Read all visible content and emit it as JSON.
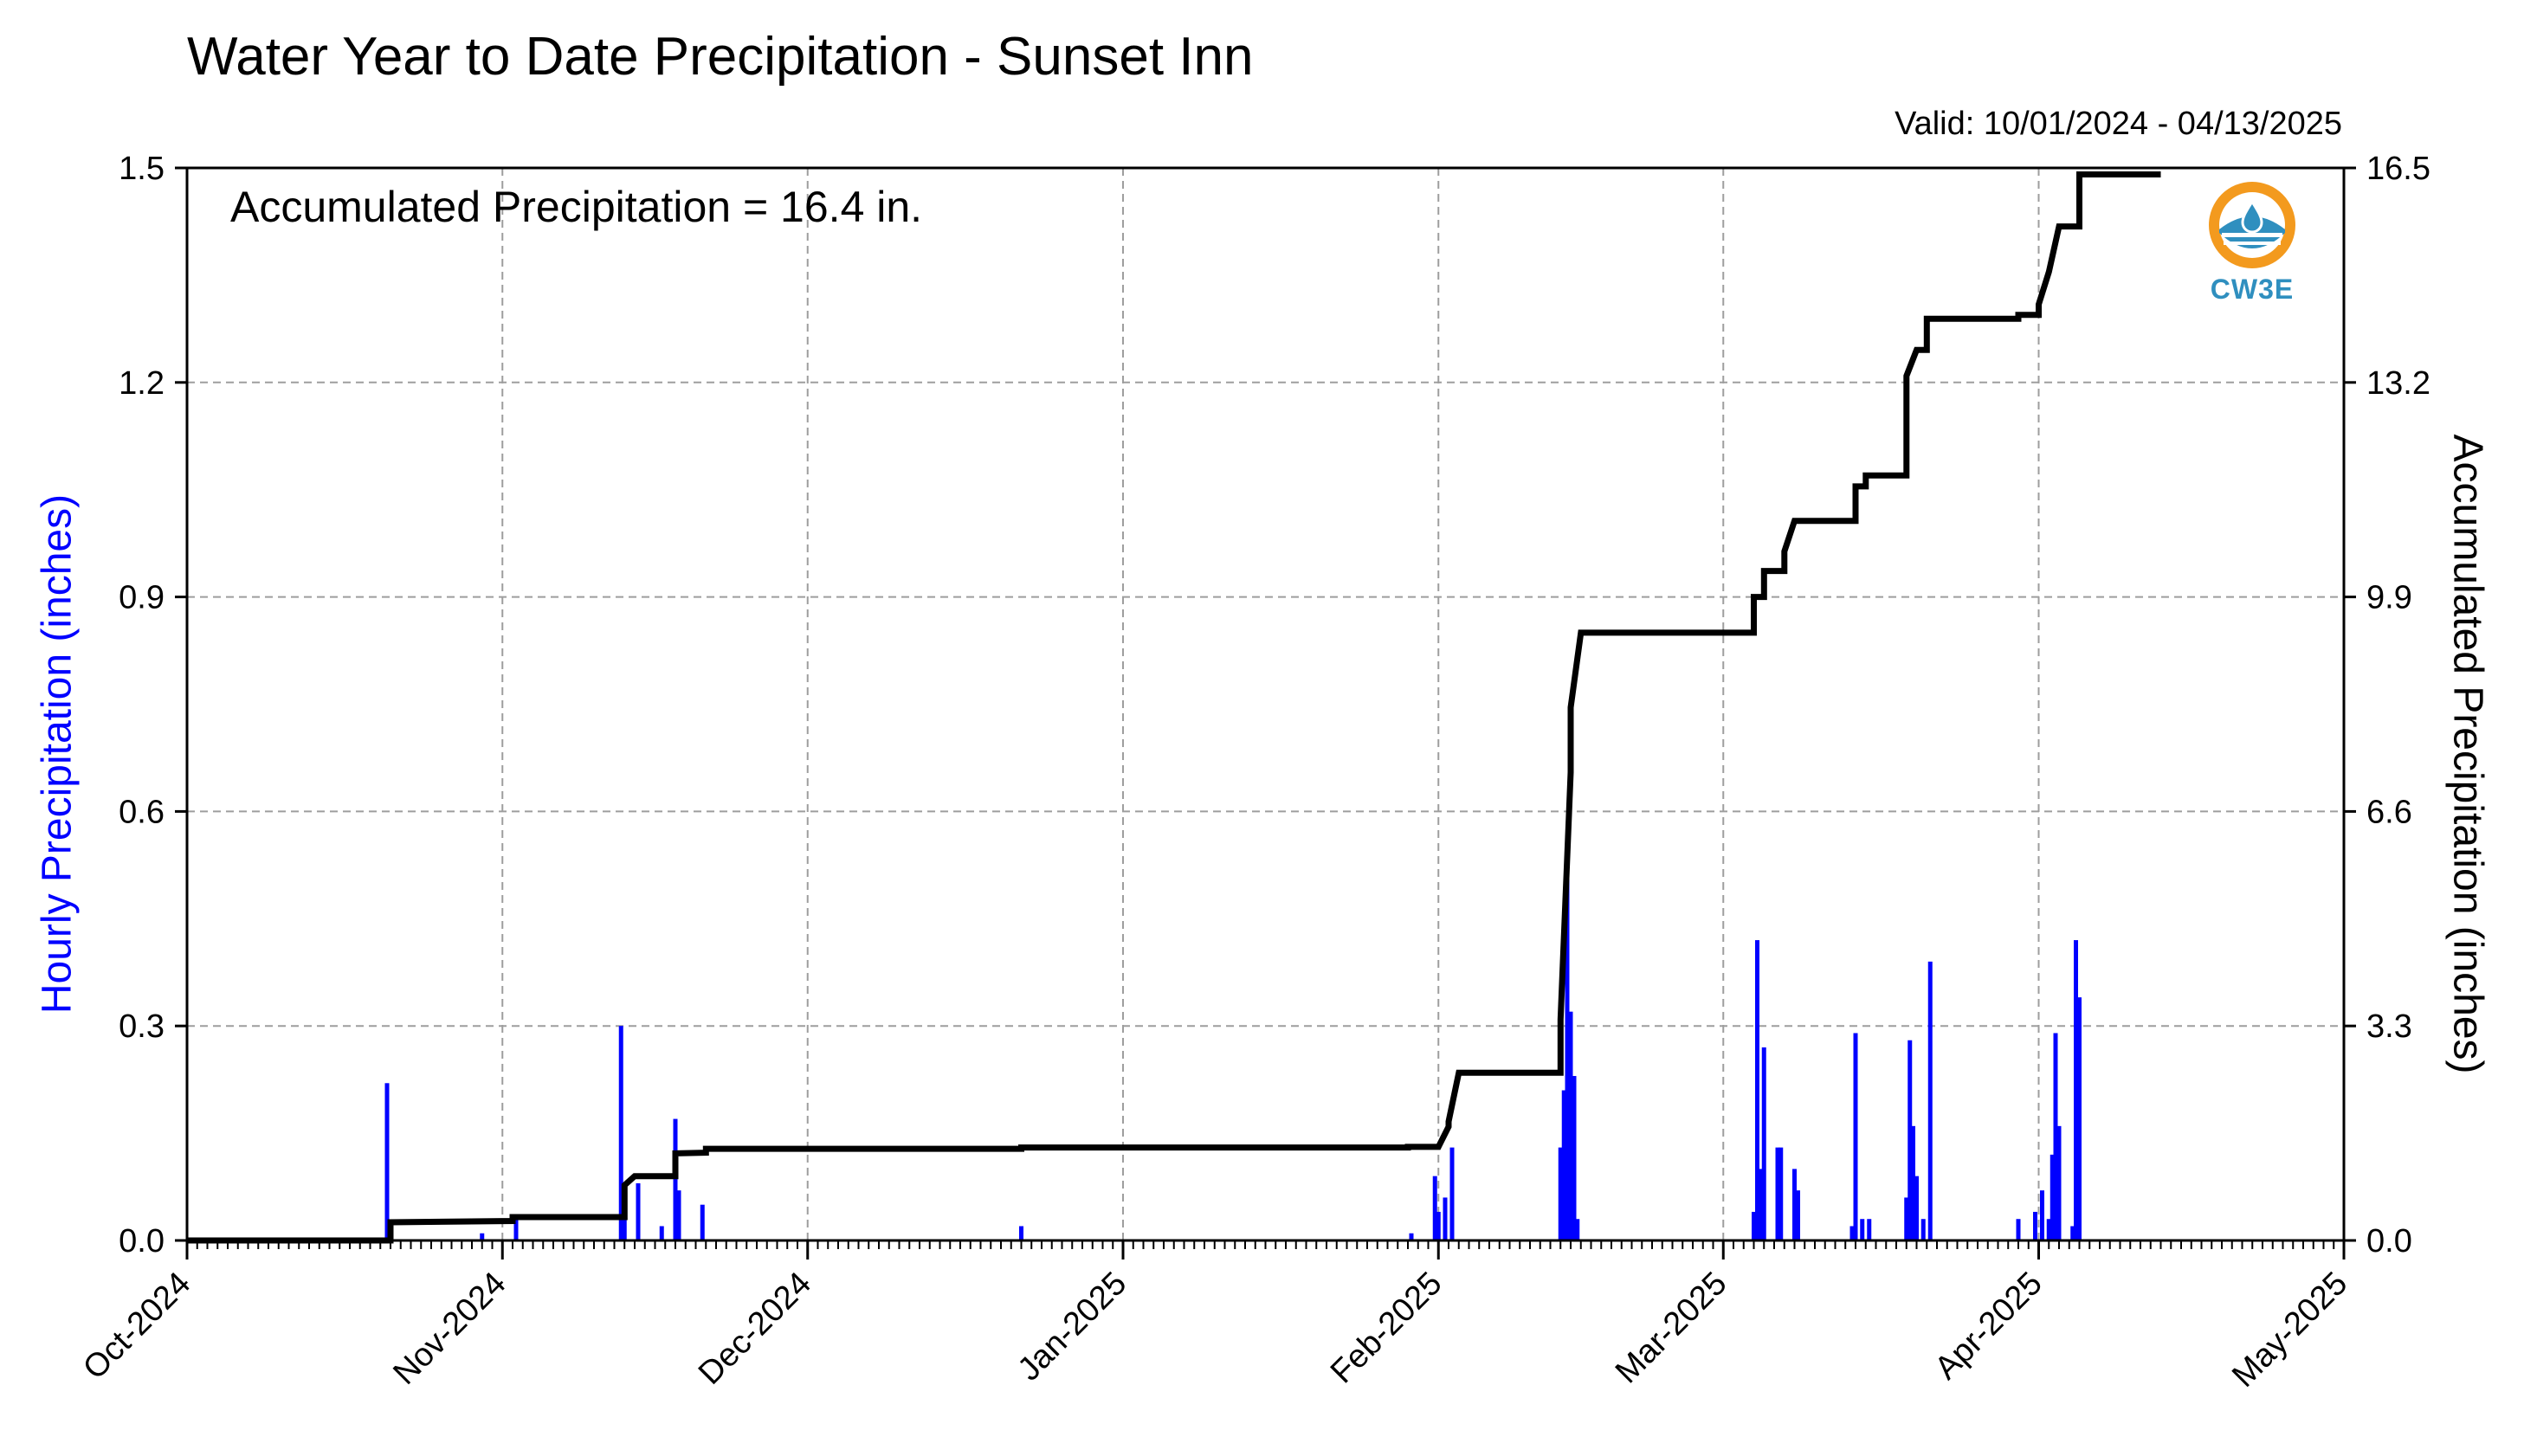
{
  "chart_data": {
    "type": "bar+line",
    "title": "Water Year to Date Precipitation - Sunset Inn",
    "subtitle": "Valid: 10/01/2024 - 04/13/2025",
    "annotation": "Accumulated Precipitation = 16.4 in.",
    "ylabel_left": "Hourly Precipitation (inches)",
    "ylabel_right": "Accumulated Precipitation (inches)",
    "ylim_left": [
      0,
      1.5
    ],
    "ylim_right": [
      0,
      16.5
    ],
    "yticks_left": [
      "0.0",
      "0.3",
      "0.6",
      "0.9",
      "1.2",
      "1.5"
    ],
    "yticks_right": [
      "0.0",
      "3.3",
      "6.6",
      "9.9",
      "13.2",
      "16.5"
    ],
    "xlim": [
      "2024-10-01",
      "2025-05-01"
    ],
    "xticks": [
      "Oct-2024",
      "Nov-2024",
      "Dec-2024",
      "Jan-2025",
      "Feb-2025",
      "Mar-2025",
      "Apr-2025",
      "May-2025"
    ],
    "grid": true,
    "series": [
      {
        "name": "Hourly Precipitation",
        "type": "bar",
        "color": "#0000ff",
        "points": [
          [
            "2024-10-21",
            0.22
          ],
          [
            "2024-10-30",
            0.01
          ],
          [
            "2024-11-02",
            0.03
          ],
          [
            "2024-11-13",
            0.3
          ],
          [
            "2024-11-13",
            0.06
          ],
          [
            "2024-11-14",
            0.08
          ],
          [
            "2024-11-17",
            0.02
          ],
          [
            "2024-11-18",
            0.17
          ],
          [
            "2024-11-18",
            0.07
          ],
          [
            "2024-11-21",
            0.05
          ],
          [
            "2024-12-22",
            0.02
          ],
          [
            "2025-01-29",
            0.01
          ],
          [
            "2025-02-01",
            0.09
          ],
          [
            "2025-02-01",
            0.04
          ],
          [
            "2025-02-02",
            0.13
          ],
          [
            "2025-02-02",
            0.06
          ],
          [
            "2025-02-13",
            0.13
          ],
          [
            "2025-02-13",
            0.21
          ],
          [
            "2025-02-14",
            0.55
          ],
          [
            "2025-02-14",
            0.32
          ],
          [
            "2025-02-14",
            0.23
          ],
          [
            "2025-02-15",
            0.03
          ],
          [
            "2025-03-04",
            0.04
          ],
          [
            "2025-03-04",
            0.42
          ],
          [
            "2025-03-05",
            0.1
          ],
          [
            "2025-03-05",
            0.27
          ],
          [
            "2025-03-06",
            0.13
          ],
          [
            "2025-03-07",
            0.13
          ],
          [
            "2025-03-08",
            0.1
          ],
          [
            "2025-03-08",
            0.07
          ],
          [
            "2025-03-14",
            0.02
          ],
          [
            "2025-03-14",
            0.29
          ],
          [
            "2025-03-15",
            0.03
          ],
          [
            "2025-03-15",
            0.03
          ],
          [
            "2025-03-19",
            0.06
          ],
          [
            "2025-03-19",
            0.28
          ],
          [
            "2025-03-20",
            0.16
          ],
          [
            "2025-03-20",
            0.09
          ],
          [
            "2025-03-21",
            0.39
          ],
          [
            "2025-03-21",
            0.03
          ],
          [
            "2025-03-30",
            0.03
          ],
          [
            "2025-04-01",
            0.07
          ],
          [
            "2025-04-01",
            0.04
          ],
          [
            "2025-04-02",
            0.03
          ],
          [
            "2025-04-02",
            0.12
          ],
          [
            "2025-04-03",
            0.29
          ],
          [
            "2025-04-03",
            0.16
          ],
          [
            "2025-04-04",
            0.02
          ],
          [
            "2025-04-05",
            0.42
          ],
          [
            "2025-04-05",
            0.34
          ]
        ]
      },
      {
        "name": "Accumulated Precipitation",
        "type": "line",
        "color": "#000000",
        "points": [
          [
            "2024-10-01",
            0.0
          ],
          [
            "2024-10-21",
            0.0
          ],
          [
            "2024-10-21",
            0.28
          ],
          [
            "2024-11-02",
            0.3
          ],
          [
            "2024-11-02",
            0.36
          ],
          [
            "2024-11-13",
            0.36
          ],
          [
            "2024-11-13",
            0.85
          ],
          [
            "2024-11-14",
            0.99
          ],
          [
            "2024-11-18",
            0.99
          ],
          [
            "2024-11-18",
            1.34
          ],
          [
            "2024-11-21",
            1.35
          ],
          [
            "2024-11-21",
            1.41
          ],
          [
            "2024-12-22",
            1.41
          ],
          [
            "2024-12-22",
            1.43
          ],
          [
            "2025-01-29",
            1.43
          ],
          [
            "2025-01-29",
            1.44
          ],
          [
            "2025-02-01",
            1.44
          ],
          [
            "2025-02-02",
            1.75
          ],
          [
            "2025-02-02",
            1.83
          ],
          [
            "2025-02-03",
            2.58
          ],
          [
            "2025-02-13",
            2.58
          ],
          [
            "2025-02-13",
            3.4
          ],
          [
            "2025-02-14",
            7.2
          ],
          [
            "2025-02-14",
            8.2
          ],
          [
            "2025-02-15",
            9.35
          ],
          [
            "2025-03-04",
            9.35
          ],
          [
            "2025-03-04",
            9.9
          ],
          [
            "2025-03-05",
            9.9
          ],
          [
            "2025-03-05",
            10.3
          ],
          [
            "2025-03-07",
            10.3
          ],
          [
            "2025-03-07",
            10.6
          ],
          [
            "2025-03-08",
            11.07
          ],
          [
            "2025-03-14",
            11.07
          ],
          [
            "2025-03-14",
            11.6
          ],
          [
            "2025-03-15",
            11.6
          ],
          [
            "2025-03-15",
            11.77
          ],
          [
            "2025-03-19",
            11.77
          ],
          [
            "2025-03-19",
            13.3
          ],
          [
            "2025-03-20",
            13.7
          ],
          [
            "2025-03-21",
            13.7
          ],
          [
            "2025-03-21",
            14.18
          ],
          [
            "2025-03-30",
            14.18
          ],
          [
            "2025-03-30",
            14.24
          ],
          [
            "2025-04-01",
            14.24
          ],
          [
            "2025-04-01",
            14.4
          ],
          [
            "2025-04-02",
            14.9
          ],
          [
            "2025-04-03",
            15.6
          ],
          [
            "2025-04-05",
            15.6
          ],
          [
            "2025-04-05",
            16.4
          ],
          [
            "2025-04-13",
            16.4
          ]
        ]
      }
    ]
  },
  "logo": {
    "text": "CW3E",
    "name": "cw3e-logo"
  }
}
